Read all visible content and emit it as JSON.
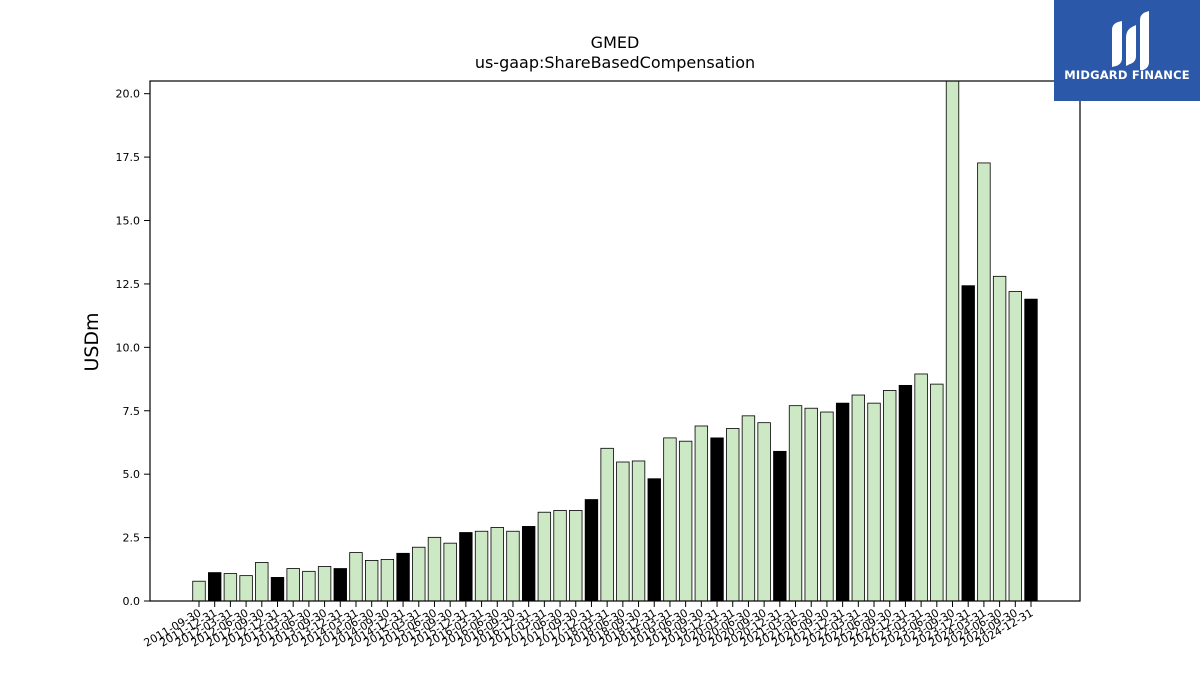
{
  "brand": {
    "name": "MIDGARD FINANCE",
    "bg_color": "#2b58a8",
    "icon": "midgard-logo-icon"
  },
  "chart_data": {
    "type": "bar",
    "title": "GMED",
    "subtitle": "us-gaap:ShareBasedCompensation",
    "xlabel": "",
    "ylabel": "USDm",
    "ylim": [
      0,
      20.5
    ],
    "yticks": [
      "0.0",
      "2.5",
      "5.0",
      "7.5",
      "10.0",
      "12.5",
      "15.0",
      "17.5",
      "20.0"
    ],
    "grid": false,
    "colors": {
      "quarter": "#cce8c4",
      "year_end": "#000000",
      "edge": "#000000"
    },
    "categories": [
      "2011-09-30",
      "2011-12-31",
      "2012-03-31",
      "2012-06-30",
      "2012-09-30",
      "2012-12-31",
      "2013-03-31",
      "2013-06-30",
      "2013-09-30",
      "2013-12-31",
      "2014-03-31",
      "2014-06-30",
      "2014-09-30",
      "2014-12-31",
      "2015-03-31",
      "2015-06-30",
      "2015-09-30",
      "2015-12-31",
      "2016-03-31",
      "2016-06-30",
      "2016-09-30",
      "2016-12-31",
      "2017-03-31",
      "2017-06-30",
      "2017-09-30",
      "2017-12-31",
      "2018-03-31",
      "2018-06-30",
      "2018-09-30",
      "2018-12-31",
      "2019-03-31",
      "2019-06-30",
      "2019-09-30",
      "2019-12-31",
      "2020-03-31",
      "2020-06-30",
      "2020-09-30",
      "2020-12-31",
      "2021-03-31",
      "2021-06-30",
      "2021-09-30",
      "2021-12-31",
      "2022-03-31",
      "2022-06-30",
      "2022-09-30",
      "2022-12-31",
      "2023-03-31",
      "2023-06-30",
      "2023-09-30",
      "2023-12-31",
      "2024-03-31",
      "2024-06-30",
      "2024-09-30",
      "2024-12-31"
    ],
    "values": [
      0.78,
      1.12,
      1.08,
      1.0,
      1.52,
      0.93,
      1.28,
      1.17,
      1.36,
      1.28,
      1.91,
      1.6,
      1.64,
      1.88,
      2.12,
      2.51,
      2.28,
      2.7,
      2.75,
      2.9,
      2.75,
      2.94,
      3.5,
      3.57,
      3.57,
      4.0,
      6.02,
      5.48,
      5.52,
      4.82,
      6.43,
      6.3,
      6.9,
      6.43,
      6.8,
      7.3,
      7.03,
      5.9,
      7.7,
      7.6,
      7.45,
      7.8,
      8.12,
      7.8,
      8.3,
      8.5,
      8.95,
      8.55,
      20.5,
      12.43,
      17.27,
      12.8,
      12.2,
      11.9
    ],
    "year_end_flags": [
      0,
      1,
      0,
      0,
      0,
      1,
      0,
      0,
      0,
      1,
      0,
      0,
      0,
      1,
      0,
      0,
      0,
      1,
      0,
      0,
      0,
      1,
      0,
      0,
      0,
      1,
      0,
      0,
      0,
      1,
      0,
      0,
      0,
      1,
      0,
      0,
      0,
      1,
      0,
      0,
      0,
      1,
      0,
      0,
      0,
      1,
      0,
      0,
      0,
      1,
      0,
      0,
      0,
      1
    ]
  }
}
